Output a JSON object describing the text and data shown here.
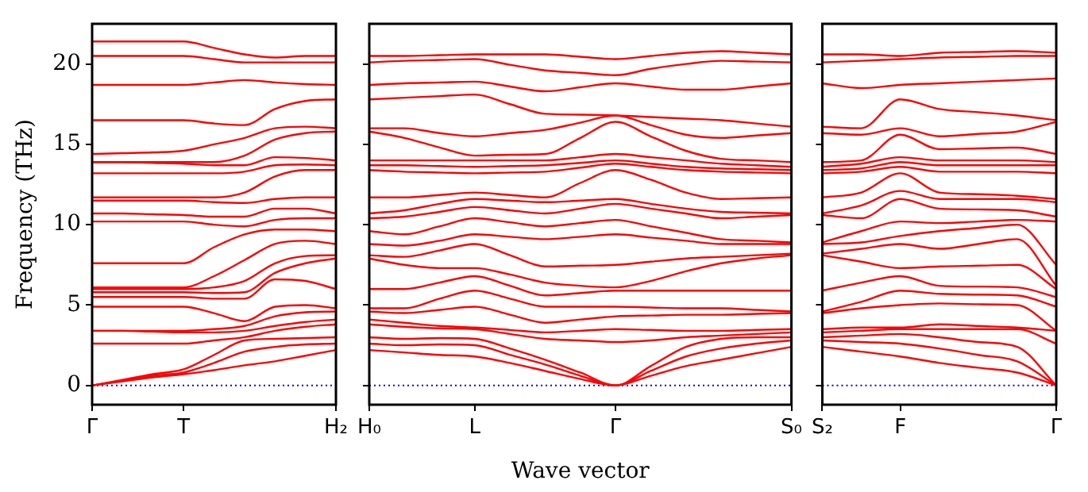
{
  "chart_data": [
    {
      "type": "line",
      "ylabel": "Frequency (THz)",
      "categories": [
        "Γ",
        null,
        null,
        "T",
        null,
        null,
        null,
        null,
        "H₂"
      ],
      "ylim": [
        -1.2,
        22.5
      ],
      "yticks": [
        0,
        5,
        10,
        15,
        20
      ],
      "ref_lines": [
        {
          "axis": "y",
          "value": 0,
          "color": "#0000ff",
          "line_style": "dotted"
        }
      ],
      "series": [
        {
          "color": "#ff0000",
          "values": [
            0,
            0.25,
            0.5,
            0.7,
            0.95,
            1.25,
            1.5,
            1.85,
            2.2
          ]
        },
        {
          "color": "#ff0000",
          "values": [
            0,
            0.3,
            0.6,
            0.8,
            1.4,
            2.1,
            2.4,
            2.55,
            2.6
          ]
        },
        {
          "color": "#ff0000",
          "values": [
            0,
            0.35,
            0.7,
            1.0,
            1.9,
            2.8,
            2.9,
            2.95,
            3.0
          ]
        },
        {
          "color": "#ff0000",
          "values": [
            2.6,
            2.6,
            2.6,
            2.6,
            2.8,
            3.0,
            3.4,
            3.65,
            3.8
          ]
        },
        {
          "color": "#ff0000",
          "values": [
            3.4,
            3.4,
            3.35,
            3.3,
            3.3,
            3.4,
            3.7,
            3.95,
            4.1
          ]
        },
        {
          "color": "#ff0000",
          "values": [
            3.4,
            3.4,
            3.4,
            3.4,
            3.5,
            3.7,
            4.3,
            4.55,
            4.6
          ]
        },
        {
          "color": "#ff0000",
          "values": [
            4.9,
            4.9,
            4.9,
            4.9,
            4.5,
            4.0,
            4.9,
            5.0,
            4.8
          ]
        },
        {
          "color": "#ff0000",
          "values": [
            5.5,
            5.5,
            5.5,
            5.5,
            5.4,
            5.4,
            6.6,
            6.5,
            6.0
          ]
        },
        {
          "color": "#ff0000",
          "values": [
            5.8,
            5.8,
            5.8,
            5.8,
            5.75,
            5.8,
            7.0,
            7.6,
            7.9
          ]
        },
        {
          "color": "#ff0000",
          "values": [
            6.0,
            6.0,
            6.0,
            6.0,
            6.1,
            6.5,
            7.6,
            8.05,
            8.1
          ]
        },
        {
          "color": "#ff0000",
          "values": [
            6.1,
            6.1,
            6.1,
            6.1,
            6.8,
            7.8,
            8.8,
            9.0,
            8.8
          ]
        },
        {
          "color": "#ff0000",
          "values": [
            7.6,
            7.6,
            7.6,
            7.6,
            8.6,
            9.4,
            9.7,
            9.7,
            9.6
          ]
        },
        {
          "color": "#ff0000",
          "values": [
            10.2,
            10.2,
            10.2,
            10.2,
            10.0,
            9.9,
            10.3,
            10.4,
            10.4
          ]
        },
        {
          "color": "#ff0000",
          "values": [
            10.7,
            10.7,
            10.65,
            10.6,
            10.5,
            10.5,
            11.0,
            11.0,
            10.7
          ]
        },
        {
          "color": "#ff0000",
          "values": [
            11.5,
            11.5,
            11.5,
            11.5,
            11.4,
            11.35,
            11.6,
            11.7,
            11.7
          ]
        },
        {
          "color": "#ff0000",
          "values": [
            11.7,
            11.7,
            11.7,
            11.7,
            11.7,
            12.0,
            13.0,
            13.4,
            13.4
          ]
        },
        {
          "color": "#ff0000",
          "values": [
            13.2,
            13.2,
            13.2,
            13.2,
            13.2,
            13.3,
            13.7,
            13.75,
            13.7
          ]
        },
        {
          "color": "#ff0000",
          "values": [
            13.9,
            13.9,
            13.85,
            13.8,
            13.7,
            13.7,
            14.2,
            14.15,
            14.0
          ]
        },
        {
          "color": "#ff0000",
          "values": [
            13.9,
            13.9,
            13.9,
            13.9,
            13.9,
            14.3,
            15.3,
            15.7,
            15.8
          ]
        },
        {
          "color": "#ff0000",
          "values": [
            14.4,
            14.45,
            14.5,
            14.6,
            15.0,
            15.4,
            16.0,
            16.1,
            16.0
          ]
        },
        {
          "color": "#ff0000",
          "values": [
            16.5,
            16.5,
            16.5,
            16.5,
            16.3,
            16.2,
            17.2,
            17.7,
            17.8
          ]
        },
        {
          "color": "#ff0000",
          "values": [
            18.7,
            18.7,
            18.7,
            18.7,
            18.85,
            19.0,
            18.85,
            18.75,
            18.7
          ]
        },
        {
          "color": "#ff0000",
          "values": [
            20.5,
            20.5,
            20.5,
            20.5,
            20.3,
            20.1,
            20.1,
            20.1,
            20.1
          ]
        },
        {
          "color": "#ff0000",
          "values": [
            21.4,
            21.4,
            21.4,
            21.4,
            21.0,
            20.6,
            20.4,
            20.5,
            20.5
          ]
        }
      ]
    },
    {
      "type": "line",
      "xlabel": "Wave vector",
      "tick_labels": "x",
      "categories": [
        "H₀",
        null,
        null,
        "L",
        null,
        null,
        null,
        "Γ",
        null,
        null,
        null,
        null,
        "S₀"
      ],
      "ylim": [
        -1.2,
        22.5
      ],
      "yticks": [
        0,
        5,
        10,
        15,
        20
      ],
      "ref_lines": [
        {
          "axis": "y",
          "value": 0,
          "color": "#0000ff",
          "line_style": "dotted"
        }
      ],
      "series": [
        {
          "color": "#ff0000",
          "values": [
            2.2,
            2.05,
            1.9,
            1.8,
            1.4,
            0.9,
            0.4,
            0,
            0.6,
            1.2,
            1.6,
            2.0,
            2.4
          ]
        },
        {
          "color": "#ff0000",
          "values": [
            2.6,
            2.5,
            2.55,
            2.5,
            1.9,
            1.3,
            0.6,
            0,
            0.9,
            1.8,
            2.3,
            2.6,
            2.8
          ]
        },
        {
          "color": "#ff0000",
          "values": [
            3.0,
            2.9,
            2.95,
            2.9,
            2.3,
            1.6,
            0.8,
            0,
            1.2,
            2.4,
            2.9,
            3.0,
            3.0
          ]
        },
        {
          "color": "#ff0000",
          "values": [
            3.8,
            3.65,
            3.55,
            3.5,
            3.2,
            2.9,
            2.8,
            2.7,
            2.8,
            3.0,
            3.1,
            3.2,
            3.3
          ]
        },
        {
          "color": "#ff0000",
          "values": [
            4.1,
            3.9,
            3.7,
            3.6,
            3.45,
            3.3,
            3.4,
            3.5,
            3.45,
            3.4,
            3.4,
            3.45,
            3.5
          ]
        },
        {
          "color": "#ff0000",
          "values": [
            4.6,
            4.5,
            4.7,
            4.9,
            4.4,
            3.9,
            4.1,
            4.3,
            4.35,
            4.4,
            4.4,
            4.45,
            4.5
          ]
        },
        {
          "color": "#ff0000",
          "values": [
            4.8,
            4.8,
            5.4,
            5.9,
            5.4,
            4.9,
            4.9,
            4.9,
            4.85,
            4.8,
            4.8,
            4.7,
            4.6
          ]
        },
        {
          "color": "#ff0000",
          "values": [
            6.0,
            6.0,
            6.4,
            6.8,
            6.2,
            5.6,
            5.75,
            5.9,
            5.9,
            5.9,
            5.9,
            5.9,
            5.9
          ]
        },
        {
          "color": "#ff0000",
          "values": [
            7.9,
            7.5,
            7.3,
            7.3,
            6.9,
            6.4,
            6.2,
            6.1,
            6.5,
            7.1,
            7.6,
            7.9,
            8.1
          ]
        },
        {
          "color": "#ff0000",
          "values": [
            8.1,
            8.0,
            8.4,
            8.8,
            8.1,
            7.4,
            7.45,
            7.5,
            7.7,
            7.9,
            8.0,
            8.1,
            8.2
          ]
        },
        {
          "color": "#ff0000",
          "values": [
            8.8,
            8.7,
            9.0,
            9.4,
            9.25,
            9.1,
            9.25,
            9.4,
            9.2,
            9.0,
            8.8,
            8.8,
            8.8
          ]
        },
        {
          "color": "#ff0000",
          "values": [
            9.6,
            9.4,
            9.9,
            10.4,
            10.15,
            9.9,
            10.1,
            10.3,
            9.9,
            9.5,
            9.1,
            9.0,
            8.9
          ]
        },
        {
          "color": "#ff0000",
          "values": [
            10.4,
            10.5,
            10.8,
            11.1,
            10.9,
            10.7,
            11.0,
            11.3,
            11.0,
            10.7,
            10.4,
            10.5,
            10.6
          ]
        },
        {
          "color": "#ff0000",
          "values": [
            10.7,
            10.9,
            11.3,
            11.6,
            11.5,
            11.4,
            11.5,
            11.6,
            11.3,
            11.0,
            10.8,
            10.75,
            10.7
          ]
        },
        {
          "color": "#ff0000",
          "values": [
            11.7,
            11.7,
            11.85,
            12.0,
            11.85,
            11.7,
            12.6,
            13.4,
            12.8,
            12.0,
            11.6,
            11.65,
            11.7
          ]
        },
        {
          "color": "#ff0000",
          "values": [
            13.4,
            13.3,
            13.25,
            13.2,
            13.25,
            13.3,
            13.55,
            13.8,
            13.6,
            13.4,
            13.3,
            13.25,
            13.2
          ]
        },
        {
          "color": "#ff0000",
          "values": [
            13.7,
            13.7,
            13.65,
            13.6,
            13.65,
            13.7,
            13.85,
            14.0,
            13.8,
            13.6,
            13.5,
            13.45,
            13.4
          ]
        },
        {
          "color": "#ff0000",
          "values": [
            14.0,
            14.0,
            14.0,
            14.0,
            14.0,
            14.0,
            14.2,
            14.4,
            14.2,
            14.0,
            13.8,
            13.7,
            13.6
          ]
        },
        {
          "color": "#ff0000",
          "values": [
            15.8,
            15.4,
            14.8,
            14.3,
            14.35,
            14.4,
            15.4,
            16.4,
            15.5,
            14.6,
            14.1,
            14.0,
            13.9
          ]
        },
        {
          "color": "#ff0000",
          "values": [
            16.0,
            16.0,
            15.7,
            15.5,
            15.7,
            15.9,
            16.35,
            16.8,
            16.2,
            15.6,
            15.4,
            15.55,
            15.7
          ]
        },
        {
          "color": "#ff0000",
          "values": [
            17.8,
            17.9,
            18.0,
            18.1,
            17.5,
            16.9,
            16.85,
            16.8,
            16.7,
            16.6,
            16.5,
            16.3,
            16.1
          ]
        },
        {
          "color": "#ff0000",
          "values": [
            18.7,
            18.8,
            18.85,
            18.9,
            18.6,
            18.3,
            18.55,
            18.8,
            18.6,
            18.4,
            18.4,
            18.6,
            18.8
          ]
        },
        {
          "color": "#ff0000",
          "values": [
            20.1,
            20.2,
            20.25,
            20.3,
            19.95,
            19.6,
            19.45,
            19.3,
            19.7,
            20.0,
            20.2,
            20.15,
            20.1
          ]
        },
        {
          "color": "#ff0000",
          "values": [
            20.5,
            20.5,
            20.55,
            20.6,
            20.6,
            20.6,
            20.45,
            20.3,
            20.5,
            20.7,
            20.8,
            20.7,
            20.6
          ]
        }
      ]
    },
    {
      "type": "line",
      "tick_labels": "x",
      "categories": [
        "S₂",
        null,
        "F",
        null,
        null,
        null,
        "Γ"
      ],
      "ylim": [
        -1.2,
        22.5
      ],
      "yticks": [
        0,
        5,
        10,
        15,
        20
      ],
      "ref_lines": [
        {
          "axis": "y",
          "value": 0,
          "color": "#0000ff",
          "line_style": "dotted"
        }
      ],
      "series": [
        {
          "color": "#ff0000",
          "values": [
            2.4,
            2.1,
            1.8,
            1.4,
            1.1,
            0.8,
            0
          ]
        },
        {
          "color": "#ff0000",
          "values": [
            2.8,
            2.7,
            2.6,
            2.3,
            1.9,
            1.5,
            0
          ]
        },
        {
          "color": "#ff0000",
          "values": [
            3.0,
            3.1,
            3.2,
            3.0,
            2.7,
            2.4,
            0
          ]
        },
        {
          "color": "#ff0000",
          "values": [
            3.3,
            3.4,
            3.5,
            3.5,
            3.5,
            3.5,
            2.6
          ]
        },
        {
          "color": "#ff0000",
          "values": [
            3.5,
            3.6,
            3.6,
            3.8,
            3.7,
            3.6,
            3.4
          ]
        },
        {
          "color": "#ff0000",
          "values": [
            4.5,
            4.8,
            5.0,
            5.1,
            5.05,
            5.0,
            3.4
          ]
        },
        {
          "color": "#ff0000",
          "values": [
            4.6,
            5.2,
            5.9,
            5.7,
            5.65,
            5.6,
            4.9
          ]
        },
        {
          "color": "#ff0000",
          "values": [
            5.9,
            6.4,
            6.8,
            6.2,
            6.15,
            6.1,
            5.5
          ]
        },
        {
          "color": "#ff0000",
          "values": [
            8.1,
            7.7,
            7.3,
            7.4,
            7.45,
            7.5,
            6.0
          ]
        },
        {
          "color": "#ff0000",
          "values": [
            8.2,
            8.5,
            8.8,
            8.5,
            8.8,
            9.1,
            6.2
          ]
        },
        {
          "color": "#ff0000",
          "values": [
            8.8,
            8.9,
            9.3,
            9.6,
            9.8,
            10.0,
            7.5
          ]
        },
        {
          "color": "#ff0000",
          "values": [
            8.9,
            9.6,
            10.2,
            10.1,
            10.2,
            10.3,
            10.2
          ]
        },
        {
          "color": "#ff0000",
          "values": [
            10.6,
            10.4,
            11.6,
            11.0,
            10.95,
            10.9,
            10.5
          ]
        },
        {
          "color": "#ff0000",
          "values": [
            10.7,
            11.2,
            12.1,
            11.6,
            11.6,
            11.6,
            11.4
          ]
        },
        {
          "color": "#ff0000",
          "values": [
            11.7,
            12.0,
            13.2,
            12.0,
            11.9,
            11.8,
            11.6
          ]
        },
        {
          "color": "#ff0000",
          "values": [
            13.2,
            13.3,
            13.6,
            13.3,
            13.3,
            13.3,
            13.2
          ]
        },
        {
          "color": "#ff0000",
          "values": [
            13.4,
            13.5,
            13.9,
            13.7,
            13.7,
            13.7,
            13.7
          ]
        },
        {
          "color": "#ff0000",
          "values": [
            13.6,
            13.8,
            14.2,
            14.0,
            14.0,
            14.0,
            13.9
          ]
        },
        {
          "color": "#ff0000",
          "values": [
            13.9,
            14.0,
            15.6,
            14.7,
            14.75,
            14.8,
            14.4
          ]
        },
        {
          "color": "#ff0000",
          "values": [
            15.7,
            15.6,
            16.0,
            15.5,
            15.65,
            15.8,
            16.4
          ]
        },
        {
          "color": "#ff0000",
          "values": [
            16.1,
            16.0,
            17.8,
            17.2,
            17.0,
            16.8,
            16.5
          ]
        },
        {
          "color": "#ff0000",
          "values": [
            18.8,
            18.5,
            18.7,
            18.8,
            18.9,
            19.0,
            19.1
          ]
        },
        {
          "color": "#ff0000",
          "values": [
            20.1,
            20.2,
            20.3,
            20.4,
            20.45,
            20.5,
            20.5
          ]
        },
        {
          "color": "#ff0000",
          "values": [
            20.6,
            20.6,
            20.5,
            20.7,
            20.75,
            20.8,
            20.7
          ]
        }
      ]
    }
  ]
}
